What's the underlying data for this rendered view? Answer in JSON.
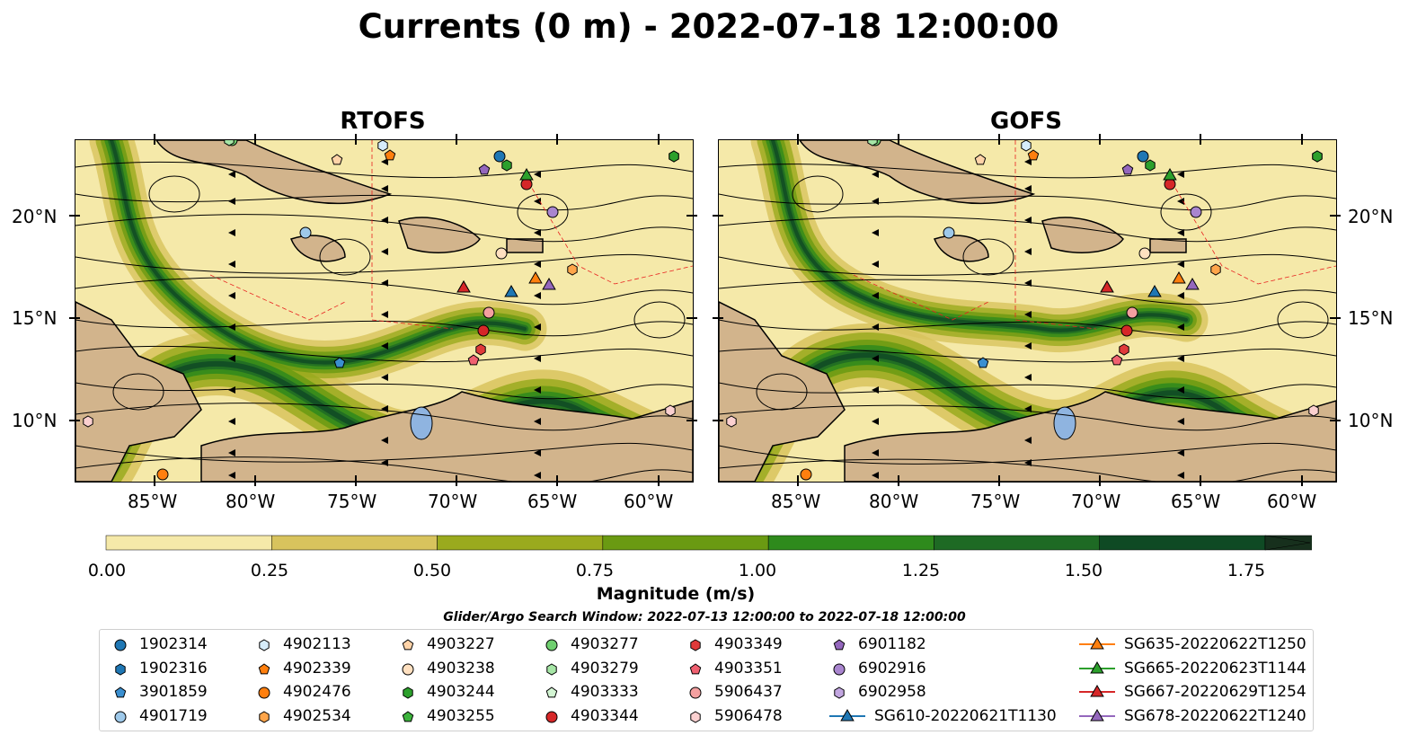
{
  "title": "Currents (0 m) - 2022-07-18 12:00:00",
  "panels": [
    {
      "title": "RTOFS",
      "model": "rtofs"
    },
    {
      "title": "GOFS",
      "model": "gofs"
    }
  ],
  "axes": {
    "x_ticks": [
      "85°W",
      "80°W",
      "75°W",
      "70°W",
      "65°W",
      "60°W"
    ],
    "y_ticks": [
      "20°N",
      "15°N",
      "10°N"
    ]
  },
  "colorbar": {
    "label": "Magnitude (m/s)",
    "ticks": [
      "0.00",
      "0.25",
      "0.50",
      "0.75",
      "1.00",
      "1.25",
      "1.50",
      "1.75"
    ],
    "colors": [
      "#f5e9a9",
      "#d8c35d",
      "#9aaa1e",
      "#6a9a12",
      "#2e8a1c",
      "#1e6a24",
      "#0f4a24",
      "#17301d"
    ],
    "extend": "max"
  },
  "search_window": "Glider/Argo Search Window: 2022-07-13 12:00:00 to 2022-07-18 12:00:00",
  "legend": [
    {
      "label": "1902314",
      "marker": "circle",
      "color": "#1f77b4"
    },
    {
      "label": "1902316",
      "marker": "hexagon",
      "color": "#1f77b4"
    },
    {
      "label": "3901859",
      "marker": "pentagon",
      "color": "#3a8fd0"
    },
    {
      "label": "4901719",
      "marker": "circle",
      "color": "#9ec9ea"
    },
    {
      "label": "4902113",
      "marker": "hexagon",
      "color": "#d6ecfa"
    },
    {
      "label": "4902339",
      "marker": "pentagon",
      "color": "#ff7f0e"
    },
    {
      "label": "4902476",
      "marker": "circle",
      "color": "#ff7f0e"
    },
    {
      "label": "4902534",
      "marker": "hexagon",
      "color": "#ffa54a"
    },
    {
      "label": "4903227",
      "marker": "pentagon",
      "color": "#ffd3a8"
    },
    {
      "label": "4903238",
      "marker": "circle",
      "color": "#ffe0c0"
    },
    {
      "label": "4903244",
      "marker": "hexagon",
      "color": "#2ca02c"
    },
    {
      "label": "4903255",
      "marker": "pentagon",
      "color": "#3cb33c"
    },
    {
      "label": "4903277",
      "marker": "circle",
      "color": "#6fcf6f"
    },
    {
      "label": "4903279",
      "marker": "hexagon",
      "color": "#a6e6a6"
    },
    {
      "label": "4903333",
      "marker": "pentagon",
      "color": "#d3f5d3"
    },
    {
      "label": "4903344",
      "marker": "circle",
      "color": "#d62728"
    },
    {
      "label": "4903349",
      "marker": "hexagon",
      "color": "#e03a3a"
    },
    {
      "label": "4903351",
      "marker": "pentagon",
      "color": "#f06070"
    },
    {
      "label": "5906437",
      "marker": "circle",
      "color": "#f4a0a0"
    },
    {
      "label": "5906478",
      "marker": "hexagon",
      "color": "#fbd0d0"
    },
    {
      "label": "6901182",
      "marker": "pentagon",
      "color": "#9467bd"
    },
    {
      "label": "6902916",
      "marker": "circle",
      "color": "#a985cf"
    },
    {
      "label": "6902958",
      "marker": "hexagon",
      "color": "#c2a6e0"
    },
    {
      "label": "SG610-20220621T1130",
      "marker": "triangle-line",
      "color": "#1f77b4"
    },
    {
      "label": "SG635-20220622T1250",
      "marker": "triangle-line",
      "color": "#ff7f0e"
    },
    {
      "label": "SG665-20220623T1144",
      "marker": "triangle-line",
      "color": "#2ca02c"
    },
    {
      "label": "SG667-20220629T1254",
      "marker": "triangle-line",
      "color": "#d62728"
    },
    {
      "label": "SG678-20220622T1240",
      "marker": "triangle-line",
      "color": "#9467bd"
    }
  ]
}
